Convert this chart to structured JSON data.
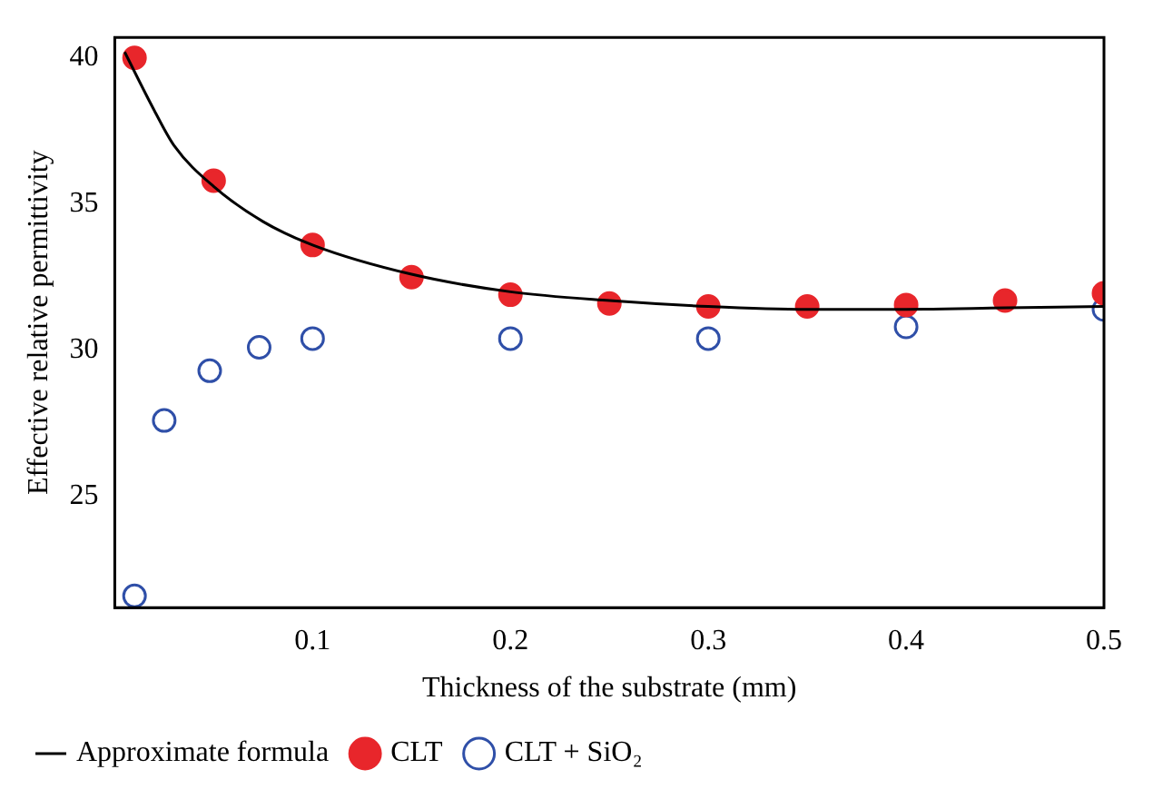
{
  "chart_data": {
    "type": "scatter",
    "xlabel": "Thickness of the substrate (mm)",
    "ylabel": "Effective relative permittivity",
    "xlim": [
      0,
      0.5
    ],
    "xticks": [
      0.1,
      0.2,
      0.3,
      0.4,
      0.5
    ],
    "ylim": [
      21.2,
      40.7
    ],
    "yticks": [
      25,
      30,
      35,
      40
    ],
    "grid": false,
    "legend": "bottom",
    "marker": "circle",
    "series": [
      {
        "name": "Approximate formula",
        "type": "line",
        "marker": "none",
        "color": "#000000",
        "x": [
          0.005,
          0.02,
          0.03,
          0.05,
          0.075,
          0.1,
          0.15,
          0.2,
          0.25,
          0.3,
          0.35,
          0.4,
          0.45,
          0.5
        ],
        "values": [
          40.2,
          38.2,
          37.0,
          35.6,
          34.4,
          33.6,
          32.6,
          32.0,
          31.7,
          31.5,
          31.4,
          31.4,
          31.45,
          31.5
        ]
      },
      {
        "name": "CLT",
        "color": "#e8262b",
        "x": [
          0.01,
          0.05,
          0.1,
          0.15,
          0.2,
          0.25,
          0.3,
          0.35,
          0.4,
          0.45,
          0.5
        ],
        "values": [
          40.0,
          35.8,
          33.6,
          32.5,
          31.9,
          31.6,
          31.5,
          31.5,
          31.55,
          31.7,
          31.95
        ]
      },
      {
        "name": "CLT + SiO₂",
        "color": "#2f4fa8",
        "x": [
          0.01,
          0.025,
          0.048,
          0.073,
          0.1,
          0.2,
          0.3,
          0.4,
          0.5
        ],
        "values": [
          21.6,
          27.6,
          29.3,
          30.1,
          30.4,
          30.4,
          30.4,
          30.8,
          31.4
        ]
      }
    ]
  }
}
